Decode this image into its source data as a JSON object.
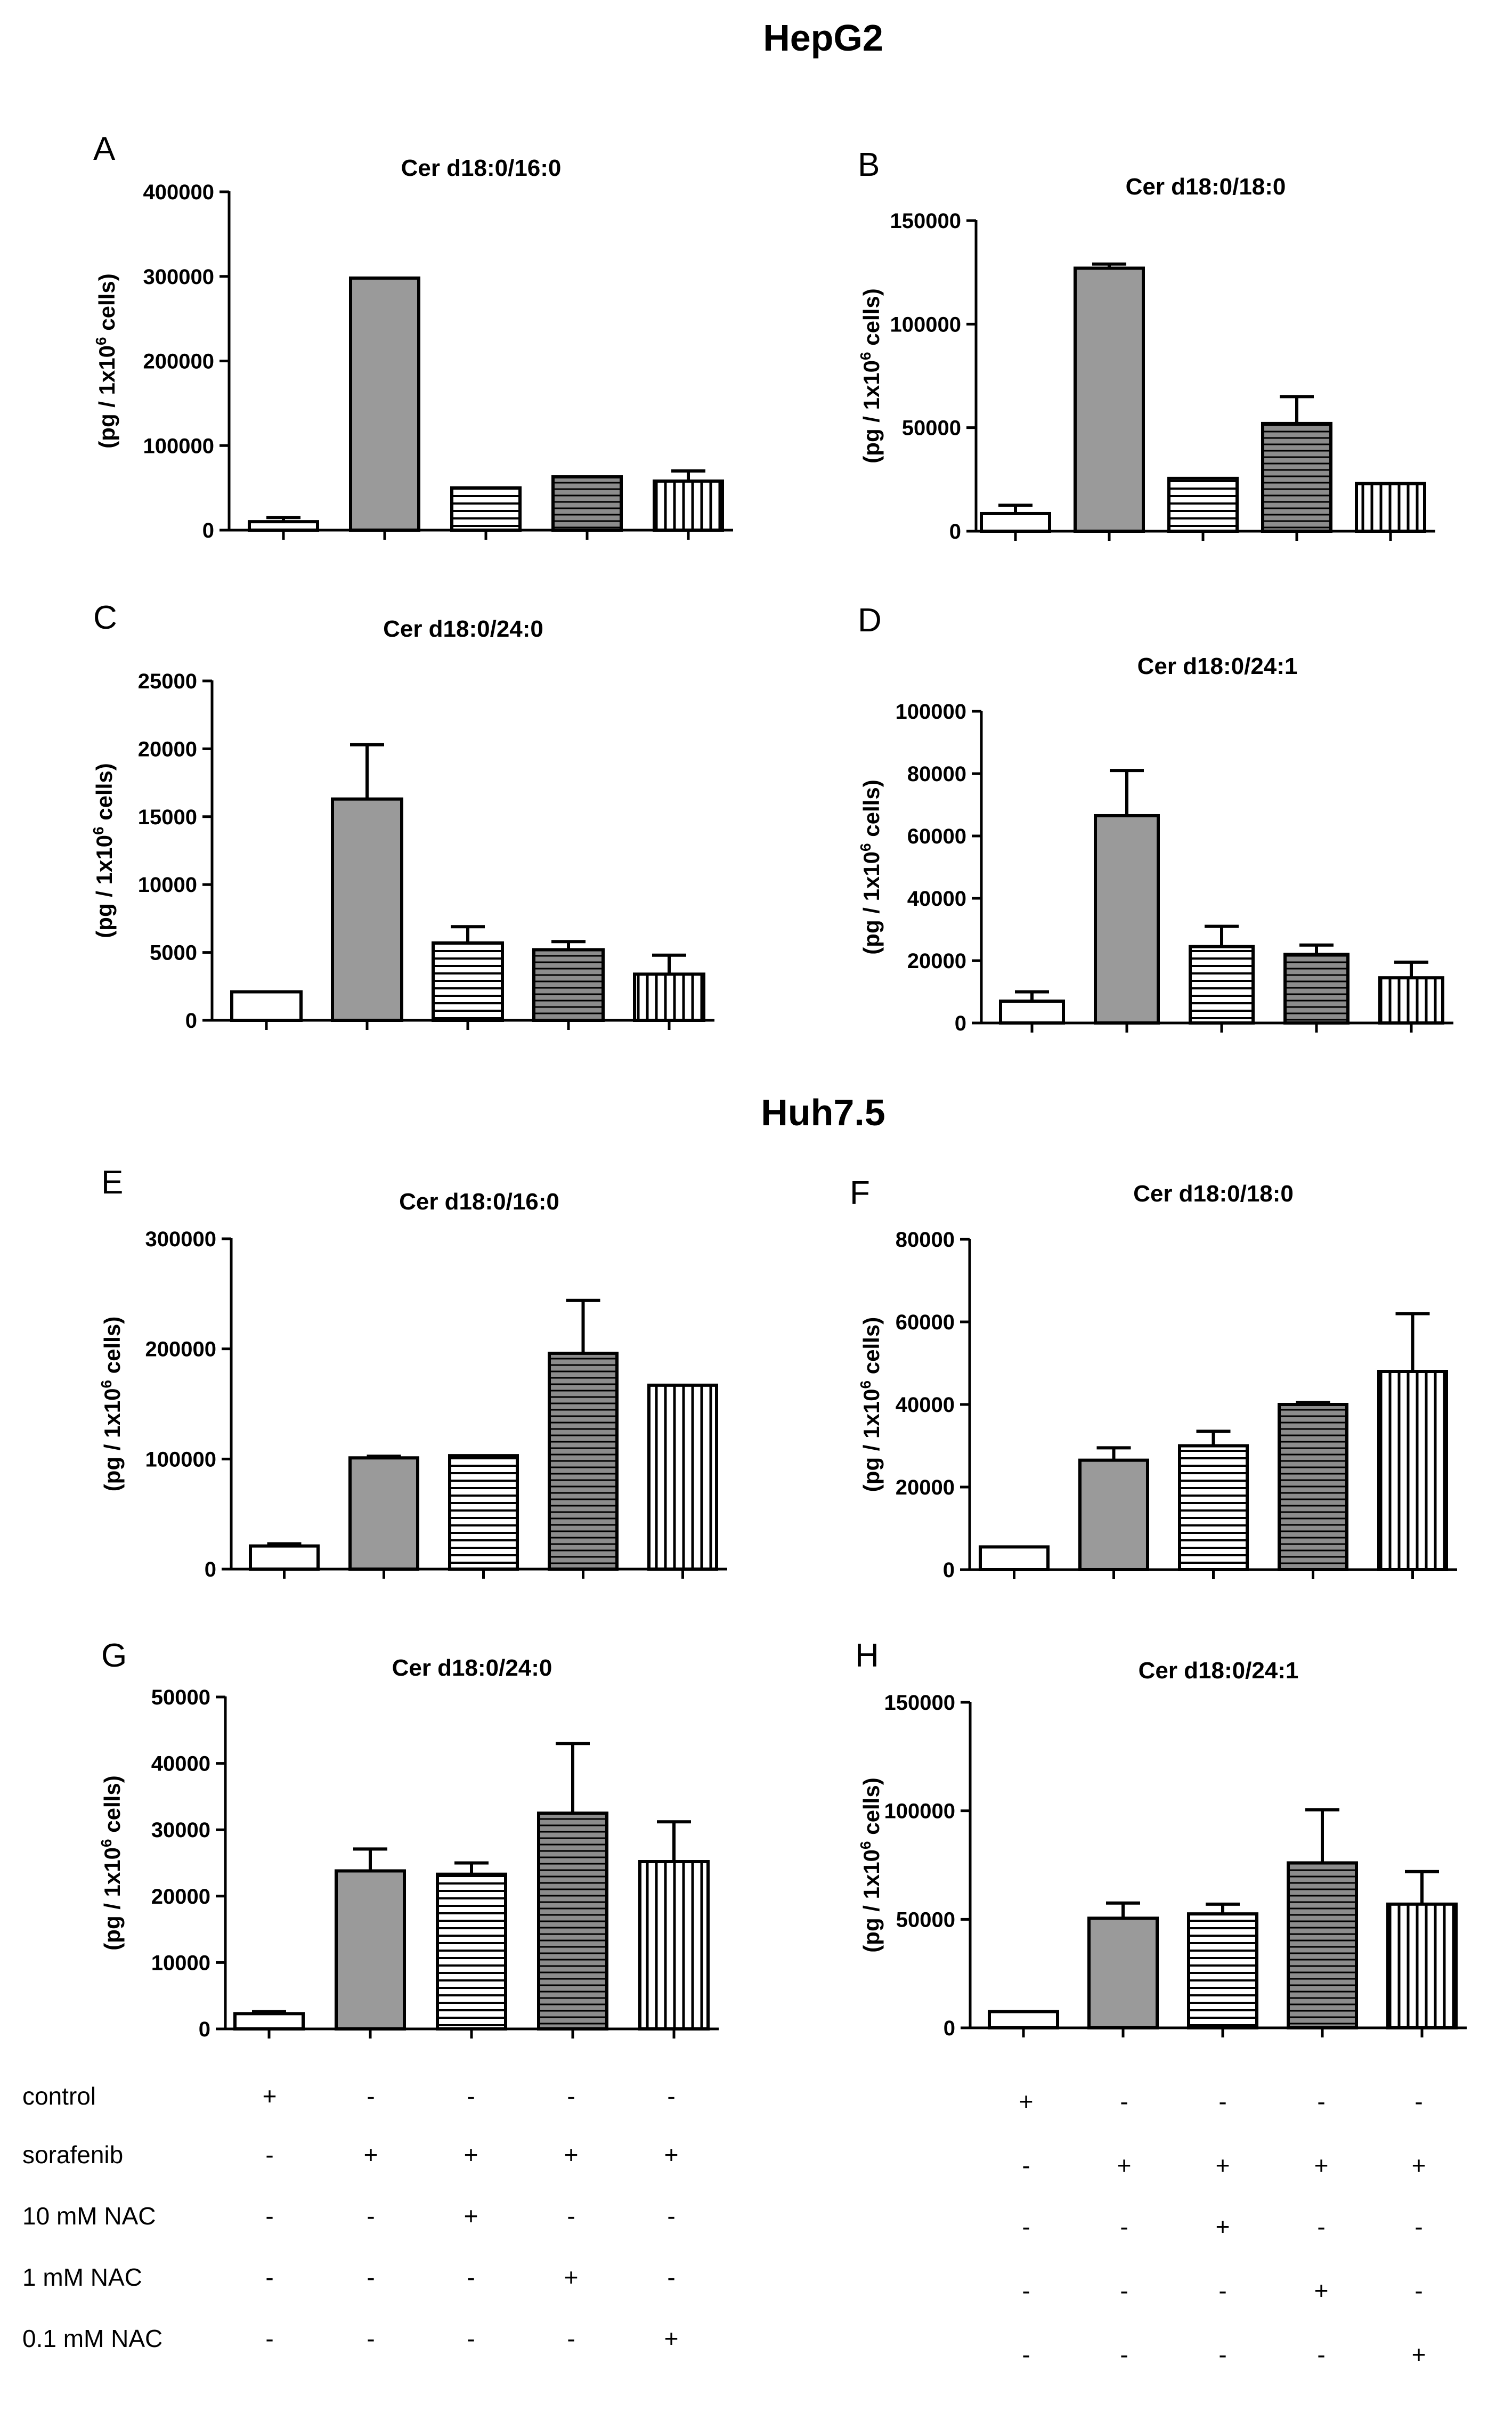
{
  "sections": [
    {
      "title": "HepG2"
    },
    {
      "title": "Huh7.5"
    }
  ],
  "colors": {
    "control": "#ffffff",
    "sorafenib": "#9a9a9a",
    "10 mM NAC": "#ffffff",
    "1 mM NAC": "#8c8c8c",
    "0.1 mM NAC": "#ffffff",
    "stroke": "#000000"
  },
  "bar_patterns": [
    "solid-white",
    "solid-gray",
    "horizontal-lines",
    "horizontal-lines-on-gray",
    "vertical-lines"
  ],
  "ylabel": {
    "prefix": "(pg / 1x10",
    "superscript": "6",
    "suffix": " cells)"
  },
  "chart_data": [
    {
      "panel": "A",
      "type": "bar",
      "title": "Cer d18:0/16:0",
      "ylim": [
        0,
        400000
      ],
      "yticks": [
        0,
        100000,
        200000,
        300000,
        400000
      ],
      "values": [
        10000,
        298000,
        50000,
        63000,
        58000
      ],
      "errors": [
        5000,
        0,
        0,
        0,
        12000
      ]
    },
    {
      "panel": "B",
      "type": "bar",
      "title": "Cer d18:0/18:0",
      "ylim": [
        0,
        150000
      ],
      "yticks": [
        0,
        50000,
        100000,
        150000
      ],
      "values": [
        8500,
        127000,
        25500,
        52000,
        23000
      ],
      "errors": [
        4000,
        2000,
        0,
        13000,
        0
      ]
    },
    {
      "panel": "C",
      "type": "bar",
      "title": "Cer d18:0/24:0",
      "ylim": [
        0,
        25000
      ],
      "yticks": [
        0,
        5000,
        10000,
        15000,
        20000,
        25000
      ],
      "values": [
        2100,
        16300,
        5700,
        5200,
        3400
      ],
      "errors": [
        0,
        4000,
        1200,
        600,
        1400
      ]
    },
    {
      "panel": "D",
      "type": "bar",
      "title": "Cer d18:0/24:1",
      "ylim": [
        0,
        100000
      ],
      "yticks": [
        0,
        20000,
        40000,
        60000,
        80000,
        100000
      ],
      "values": [
        7000,
        66500,
        24500,
        22000,
        14500
      ],
      "errors": [
        3000,
        14500,
        6500,
        3000,
        5000
      ]
    },
    {
      "panel": "E",
      "type": "bar",
      "title": "Cer d18:0/16:0",
      "ylim": [
        0,
        300000
      ],
      "yticks": [
        0,
        100000,
        200000,
        300000
      ],
      "values": [
        21000,
        101000,
        103000,
        196000,
        167000
      ],
      "errors": [
        2000,
        1500,
        0,
        48000,
        0
      ]
    },
    {
      "panel": "F",
      "type": "bar",
      "title": "Cer d18:0/18:0",
      "ylim": [
        0,
        80000
      ],
      "yticks": [
        0,
        20000,
        40000,
        60000,
        80000
      ],
      "values": [
        5500,
        26500,
        30000,
        40000,
        48000
      ],
      "errors": [
        0,
        3000,
        3500,
        500,
        14000
      ]
    },
    {
      "panel": "G",
      "type": "bar",
      "title": "Cer d18:0/24:0",
      "ylim": [
        0,
        50000
      ],
      "yticks": [
        0,
        10000,
        20000,
        30000,
        40000,
        50000
      ],
      "values": [
        2300,
        23800,
        23300,
        32500,
        25200
      ],
      "errors": [
        300,
        3300,
        1700,
        10500,
        6000
      ]
    },
    {
      "panel": "H",
      "type": "bar",
      "title": "Cer d18:0/24:1",
      "ylim": [
        0,
        150000
      ],
      "yticks": [
        0,
        50000,
        100000,
        150000
      ],
      "values": [
        7500,
        50500,
        52500,
        76000,
        57000
      ],
      "errors": [
        0,
        7000,
        4500,
        24500,
        15000
      ]
    }
  ],
  "conditions": {
    "labels": [
      "control",
      "sorafenib",
      "10 mM NAC",
      "1 mM NAC",
      "0.1 mM NAC"
    ],
    "matrix": [
      [
        "+",
        "-",
        "-",
        "-",
        "-"
      ],
      [
        "-",
        "+",
        "+",
        "+",
        "+"
      ],
      [
        "-",
        "-",
        "+",
        "-",
        "-"
      ],
      [
        "-",
        "-",
        "-",
        "+",
        "-"
      ],
      [
        "-",
        "-",
        "-",
        "-",
        "+"
      ]
    ]
  }
}
